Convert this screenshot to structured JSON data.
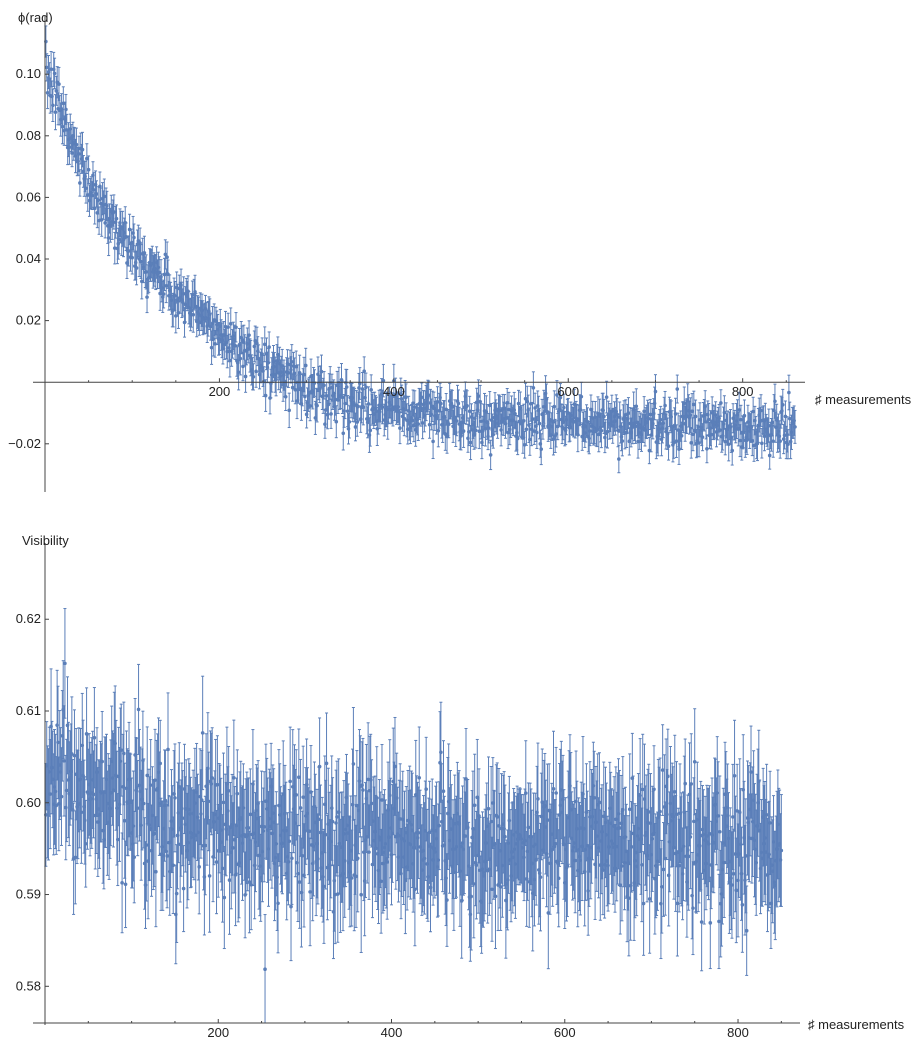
{
  "chart_data": [
    {
      "type": "scatter",
      "ylabel": "ϕ(rad)",
      "xlabel": "♯ measurements",
      "xlim": [
        0,
        860
      ],
      "ylim": [
        -0.035,
        0.115
      ],
      "xticks": [
        200,
        400,
        600,
        800
      ],
      "yticks": [
        -0.02,
        0.02,
        0.04,
        0.06,
        0.08,
        0.1
      ],
      "ytick_labels": [
        "−0.02",
        "0.02",
        "0.04",
        "0.06",
        "0.08",
        "0.10"
      ],
      "n_points": 860,
      "series": [
        {
          "color": "#5b7fb9",
          "x_start": 1,
          "x_end": 860,
          "trend_x": [
            0,
            10,
            30,
            60,
            100,
            150,
            200,
            250,
            300,
            350,
            400,
            450,
            500,
            600,
            700,
            800,
            860
          ],
          "trend_y": [
            0.1,
            0.095,
            0.078,
            0.06,
            0.043,
            0.028,
            0.016,
            0.006,
            -0.002,
            -0.006,
            -0.009,
            -0.011,
            -0.012,
            -0.013,
            -0.014,
            -0.015,
            -0.015
          ],
          "scatter_sd": 0.004,
          "error_half_width": 0.005
        }
      ]
    },
    {
      "type": "scatter",
      "ylabel": "Visibility",
      "xlabel": "♯ measurements",
      "xlim": [
        0,
        860
      ],
      "ylim": [
        0.576,
        0.627
      ],
      "xticks": [
        200,
        400,
        600,
        800
      ],
      "yticks": [
        0.58,
        0.59,
        0.6,
        0.61,
        0.62
      ],
      "ytick_labels": [
        "0.58",
        "0.59",
        "0.60",
        "0.61",
        "0.62"
      ],
      "n_points": 850,
      "series": [
        {
          "color": "#5b7fb9",
          "x_start": 1,
          "x_end": 850,
          "trend_x": [
            0,
            20,
            60,
            120,
            200,
            300,
            400,
            500,
            600,
            700,
            800,
            850
          ],
          "trend_y": [
            0.604,
            0.603,
            0.601,
            0.599,
            0.597,
            0.596,
            0.596,
            0.595,
            0.596,
            0.596,
            0.596,
            0.596
          ],
          "scatter_sd": 0.0035,
          "error_half_width": 0.0055
        }
      ]
    }
  ]
}
